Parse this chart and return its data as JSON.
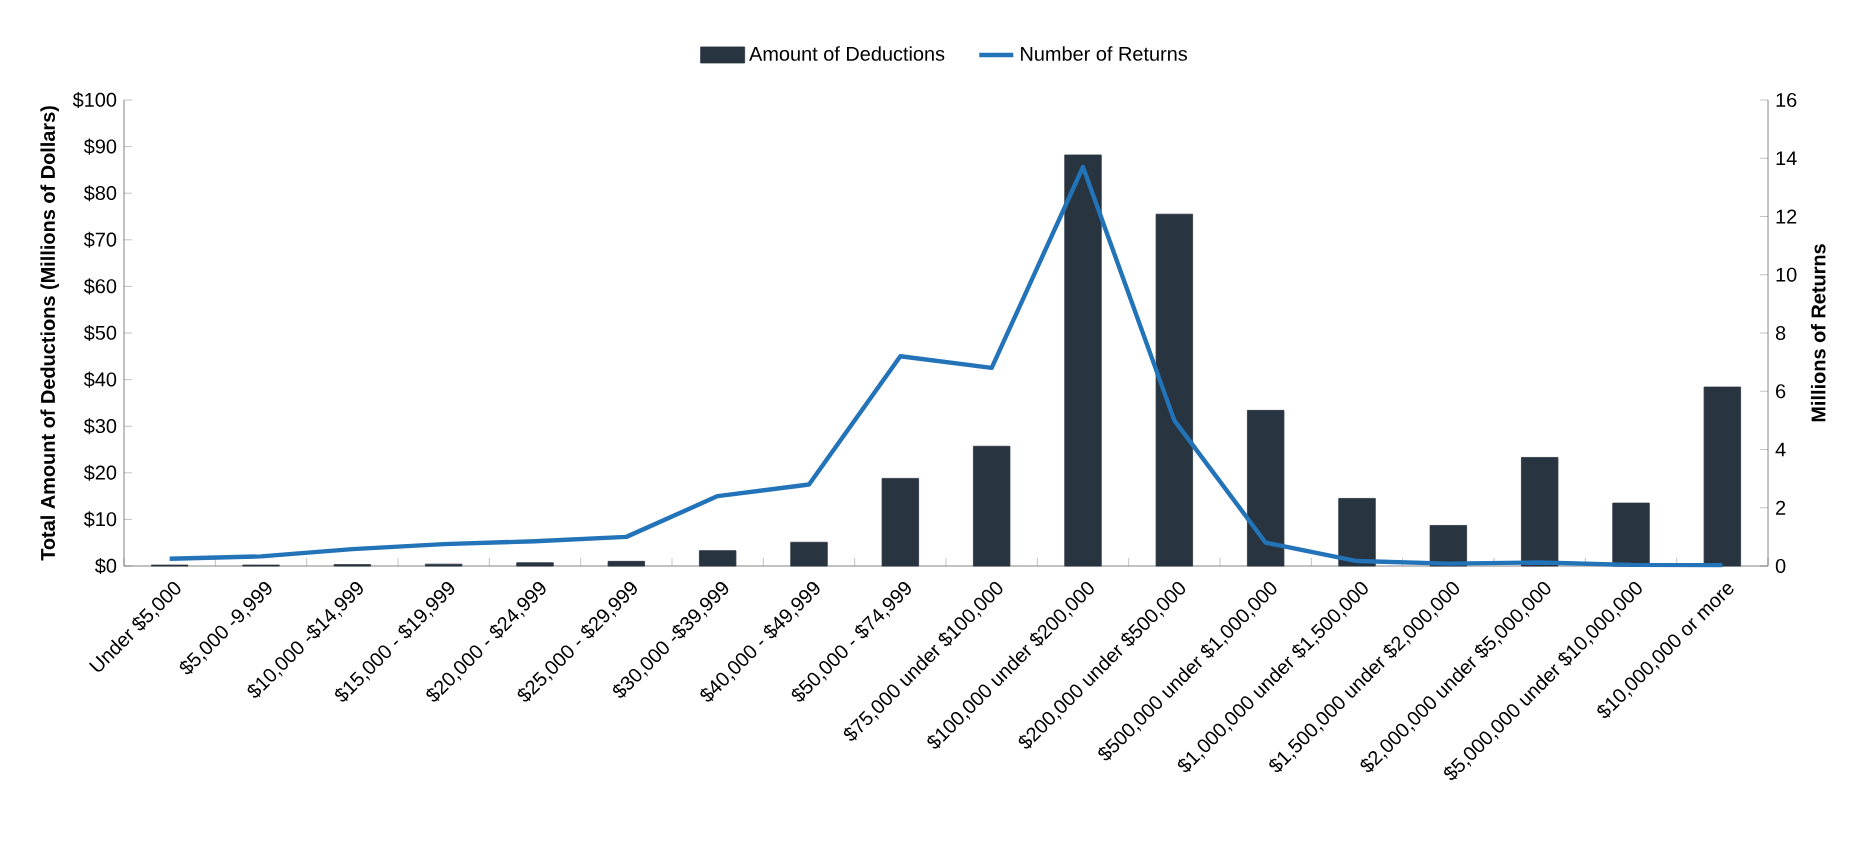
{
  "chart_data": {
    "type": "bar",
    "ylabel": "Total Amount of Deductions (Millions of Dollars)",
    "y2label": "Millions of Returns",
    "categories": [
      "Under $5,000",
      "$5,000 -9,999",
      "$10,000 -$14,999",
      "$15,000 - $19,999",
      "$20,000 - $24,999",
      "$25,000 - $29,999",
      "$30,000 -$39,999",
      "$40,000 - $49,999",
      "$50,000 - $74,999",
      "$75,000 under $100,000",
      "$100,000 under $200,000",
      "$200,000 under $500,000",
      "$500,000 under $1,000,000",
      "$1,000,000 under $1,500,000",
      "$1,500,000 under $2,000,000",
      "$2,000,000 under $5,000,000",
      "$5,000,000 under $10,000,000",
      "$10,000,000 or more"
    ],
    "series": [
      {
        "name": "Amount of Deductions",
        "color": "#283440",
        "values": [
          0.2,
          0.2,
          0.3,
          0.4,
          0.7,
          1.0,
          3.3,
          5.1,
          18.8,
          25.7,
          88.2,
          75.5,
          33.4,
          14.5,
          8.7,
          23.3,
          13.5,
          38.4
        ]
      },
      {
        "name": "Number of Returns",
        "type": "line",
        "axis": "y2",
        "color": "#2273b8",
        "values": [
          0.25,
          0.33,
          0.58,
          0.75,
          0.85,
          1.0,
          2.4,
          2.8,
          7.2,
          6.8,
          13.7,
          5.0,
          0.8,
          0.17,
          0.08,
          0.12,
          0.04,
          0.03
        ]
      }
    ],
    "ylim": [
      0,
      100
    ],
    "yticks": [
      {
        "value": 0,
        "label": "$0"
      },
      {
        "value": 10,
        "label": "$10"
      },
      {
        "value": 20,
        "label": "$20"
      },
      {
        "value": 30,
        "label": "$30"
      },
      {
        "value": 40,
        "label": "$40"
      },
      {
        "value": 50,
        "label": "$50"
      },
      {
        "value": 60,
        "label": "$60"
      },
      {
        "value": 70,
        "label": "$70"
      },
      {
        "value": 80,
        "label": "$80"
      },
      {
        "value": 90,
        "label": "$90"
      },
      {
        "value": 100,
        "label": "$100"
      }
    ],
    "y2lim": [
      0,
      16
    ],
    "y2ticks": [
      0,
      2,
      4,
      6,
      8,
      10,
      12,
      14,
      16
    ],
    "legend": "top",
    "grid": false,
    "marker": "none",
    "line_style": "solid"
  }
}
